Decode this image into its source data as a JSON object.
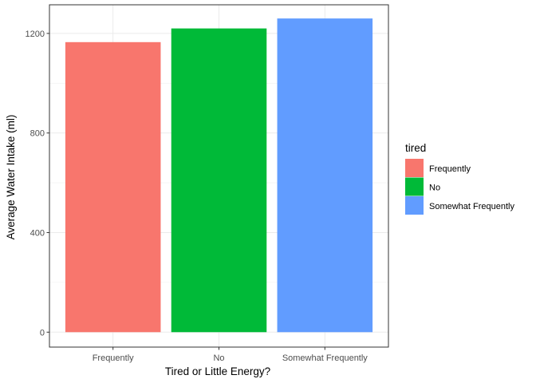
{
  "chart_data": {
    "type": "bar",
    "categories": [
      "Frequently",
      "No",
      "Somewhat Frequently"
    ],
    "values": [
      1165,
      1220,
      1260
    ],
    "colors": [
      "#F8766D",
      "#00BA38",
      "#619CFF"
    ],
    "xlabel": "Tired or Little Energy?",
    "ylabel": "Average Water Intake (ml)",
    "ylim": [
      -60,
      1315
    ],
    "yticks": [
      0,
      400,
      800,
      1200
    ],
    "ytick_labels": [
      "0",
      "400",
      "800",
      "1200"
    ],
    "grid": true,
    "legend": {
      "title": "tired",
      "placement": "right",
      "entries": [
        "Frequently",
        "No",
        "Somewhat Frequently"
      ]
    }
  }
}
